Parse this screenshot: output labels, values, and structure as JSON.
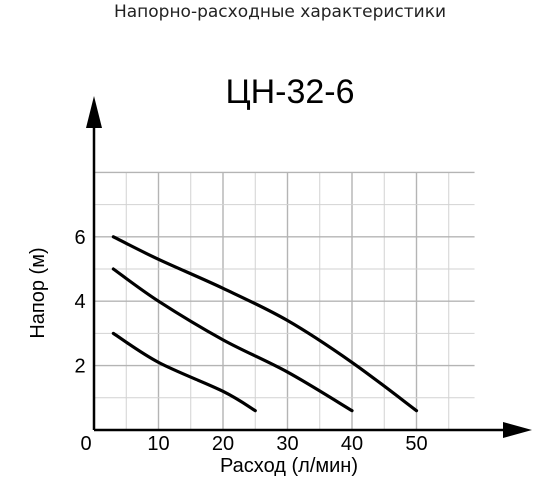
{
  "header": {
    "title": "Напорно-расходные характеристики"
  },
  "chart_data": {
    "type": "line",
    "title": "ЦН-32-6",
    "xlabel": "Расход (л/мин)",
    "ylabel": "Напор (м)",
    "xlim": [
      0,
      62
    ],
    "ylim": [
      0,
      7.3
    ],
    "x_ticks": [
      0,
      10,
      20,
      30,
      40,
      50
    ],
    "y_ticks": [
      2,
      4,
      6
    ],
    "grid": true,
    "series": [
      {
        "x": [
          3,
          10,
          20,
          30,
          40,
          50
        ],
        "y": [
          6.0,
          5.3,
          4.4,
          3.4,
          2.1,
          0.6
        ],
        "color": "#000000"
      },
      {
        "x": [
          3,
          10,
          20,
          30,
          40
        ],
        "y": [
          5.0,
          4.0,
          2.8,
          1.8,
          0.6
        ],
        "color": "#000000"
      },
      {
        "x": [
          3,
          10,
          20,
          25
        ],
        "y": [
          3.0,
          2.1,
          1.2,
          0.6
        ],
        "color": "#000000"
      }
    ]
  }
}
